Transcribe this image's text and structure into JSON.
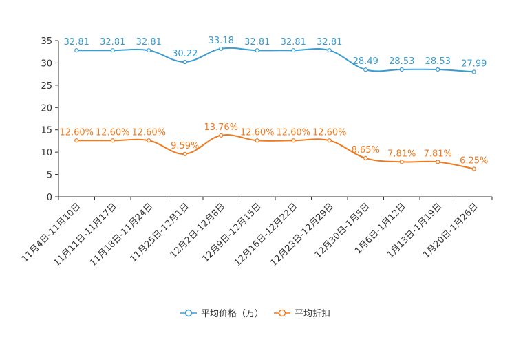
{
  "chart_data": {
    "type": "line",
    "categories": [
      "11月4日-11月10日",
      "11月11日-11月17日",
      "11月18日-11月24日",
      "11月25日-12月1日",
      "12月2日-12月8日",
      "12月9日-12月15日",
      "12月16日-12月22日",
      "12月23日-12月29日",
      "12月30日-1月5日",
      "1月6日-1月12日",
      "1月13日-1月19日",
      "1月20日-1月26日"
    ],
    "series": [
      {
        "name": "平均价格（万）",
        "color": "#3c9cd0",
        "values": [
          32.81,
          32.81,
          32.81,
          30.22,
          33.18,
          32.81,
          32.81,
          32.81,
          28.49,
          28.53,
          28.53,
          27.99
        ],
        "labels": [
          "32.81",
          "32.81",
          "32.81",
          "30.22",
          "33.18",
          "32.81",
          "32.81",
          "32.81",
          "28.49",
          "28.53",
          "28.53",
          "27.99"
        ]
      },
      {
        "name": "平均折扣",
        "color": "#f07a1e",
        "values": [
          12.6,
          12.6,
          12.6,
          9.59,
          13.76,
          12.6,
          12.6,
          12.6,
          8.65,
          7.81,
          7.81,
          6.25
        ],
        "labels": [
          "12.60%",
          "12.60%",
          "12.60%",
          "9.59%",
          "13.76%",
          "12.60%",
          "12.60%",
          "12.60%",
          "8.65%",
          "7.81%",
          "7.81%",
          "6.25%"
        ]
      }
    ],
    "y_ticks": [
      "0",
      "5",
      "10",
      "15",
      "20",
      "25",
      "30",
      "35"
    ],
    "ylim": [
      0,
      35
    ],
    "title": "",
    "xlabel": "",
    "ylabel": "",
    "legend_position": "bottom-center"
  }
}
